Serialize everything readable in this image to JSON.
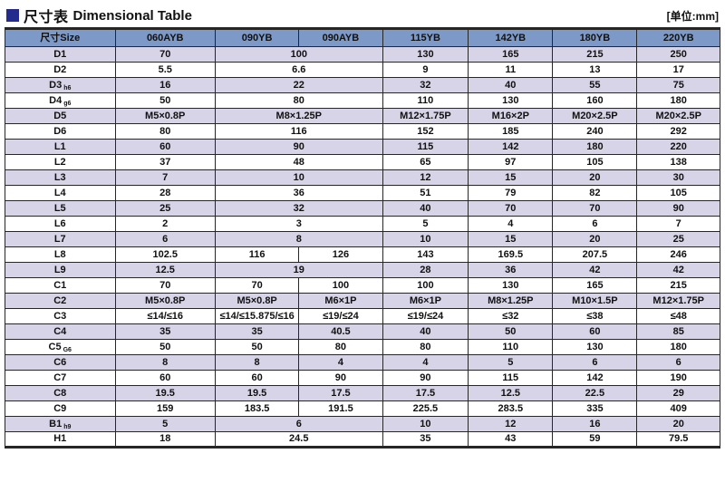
{
  "header": {
    "title_zh": "尺寸表",
    "title_en": "Dimensional Table",
    "unit": "[单位:mm]"
  },
  "colors": {
    "header_bg": "#7d99c8",
    "row_alt_bg": "#d8d4e8",
    "border": "#262626",
    "title_square": "#232c8c"
  },
  "table": {
    "columns": [
      "尺寸Size",
      "060AYB",
      "090YB",
      "090AYB",
      "115YB",
      "142YB",
      "180YB",
      "220YB"
    ],
    "col_widths_pct": [
      15.4,
      14.0,
      11.7,
      11.7,
      12.0,
      11.8,
      11.8,
      11.6
    ],
    "rows": [
      {
        "label": "D1",
        "sub": "",
        "cells": [
          {
            "v": "70"
          },
          {
            "v": "100",
            "s": 2
          },
          {
            "v": "130"
          },
          {
            "v": "165"
          },
          {
            "v": "215"
          },
          {
            "v": "250"
          }
        ]
      },
      {
        "label": "D2",
        "sub": "",
        "cells": [
          {
            "v": "5.5"
          },
          {
            "v": "6.6",
            "s": 2
          },
          {
            "v": "9"
          },
          {
            "v": "11"
          },
          {
            "v": "13"
          },
          {
            "v": "17"
          }
        ]
      },
      {
        "label": "D3",
        "sub": "h6",
        "cells": [
          {
            "v": "16"
          },
          {
            "v": "22",
            "s": 2
          },
          {
            "v": "32"
          },
          {
            "v": "40"
          },
          {
            "v": "55"
          },
          {
            "v": "75"
          }
        ]
      },
      {
        "label": "D4",
        "sub": "g6",
        "cells": [
          {
            "v": "50"
          },
          {
            "v": "80",
            "s": 2
          },
          {
            "v": "110"
          },
          {
            "v": "130"
          },
          {
            "v": "160"
          },
          {
            "v": "180"
          }
        ]
      },
      {
        "label": "D5",
        "sub": "",
        "cells": [
          {
            "v": "M5×0.8P"
          },
          {
            "v": "M8×1.25P",
            "s": 2
          },
          {
            "v": "M12×1.75P"
          },
          {
            "v": "M16×2P"
          },
          {
            "v": "M20×2.5P"
          },
          {
            "v": "M20×2.5P"
          }
        ]
      },
      {
        "label": "D6",
        "sub": "",
        "cells": [
          {
            "v": "80"
          },
          {
            "v": "116",
            "s": 2
          },
          {
            "v": "152"
          },
          {
            "v": "185"
          },
          {
            "v": "240"
          },
          {
            "v": "292"
          }
        ]
      },
      {
        "label": "L1",
        "sub": "",
        "cells": [
          {
            "v": "60"
          },
          {
            "v": "90",
            "s": 2
          },
          {
            "v": "115"
          },
          {
            "v": "142"
          },
          {
            "v": "180"
          },
          {
            "v": "220"
          }
        ]
      },
      {
        "label": "L2",
        "sub": "",
        "cells": [
          {
            "v": "37"
          },
          {
            "v": "48",
            "s": 2
          },
          {
            "v": "65"
          },
          {
            "v": "97"
          },
          {
            "v": "105"
          },
          {
            "v": "138"
          }
        ]
      },
      {
        "label": "L3",
        "sub": "",
        "cells": [
          {
            "v": "7"
          },
          {
            "v": "10",
            "s": 2
          },
          {
            "v": "12"
          },
          {
            "v": "15"
          },
          {
            "v": "20"
          },
          {
            "v": "30"
          }
        ]
      },
      {
        "label": "L4",
        "sub": "",
        "cells": [
          {
            "v": "28"
          },
          {
            "v": "36",
            "s": 2
          },
          {
            "v": "51"
          },
          {
            "v": "79"
          },
          {
            "v": "82"
          },
          {
            "v": "105"
          }
        ]
      },
      {
        "label": "L5",
        "sub": "",
        "cells": [
          {
            "v": "25"
          },
          {
            "v": "32",
            "s": 2
          },
          {
            "v": "40"
          },
          {
            "v": "70"
          },
          {
            "v": "70"
          },
          {
            "v": "90"
          }
        ]
      },
      {
        "label": "L6",
        "sub": "",
        "cells": [
          {
            "v": "2"
          },
          {
            "v": "3",
            "s": 2
          },
          {
            "v": "5"
          },
          {
            "v": "4"
          },
          {
            "v": "6"
          },
          {
            "v": "7"
          }
        ]
      },
      {
        "label": "L7",
        "sub": "",
        "cells": [
          {
            "v": "6"
          },
          {
            "v": "8",
            "s": 2
          },
          {
            "v": "10"
          },
          {
            "v": "15"
          },
          {
            "v": "20"
          },
          {
            "v": "25"
          }
        ]
      },
      {
        "label": "L8",
        "sub": "",
        "cells": [
          {
            "v": "102.5"
          },
          {
            "v": "116"
          },
          {
            "v": "126"
          },
          {
            "v": "143"
          },
          {
            "v": "169.5"
          },
          {
            "v": "207.5"
          },
          {
            "v": "246"
          }
        ]
      },
      {
        "label": "L9",
        "sub": "",
        "cells": [
          {
            "v": "12.5"
          },
          {
            "v": "19",
            "s": 2
          },
          {
            "v": "28"
          },
          {
            "v": "36"
          },
          {
            "v": "42"
          },
          {
            "v": "42"
          }
        ]
      },
      {
        "label": "C1",
        "sub": "",
        "cells": [
          {
            "v": "70"
          },
          {
            "v": "70"
          },
          {
            "v": "100"
          },
          {
            "v": "100"
          },
          {
            "v": "130"
          },
          {
            "v": "165"
          },
          {
            "v": "215"
          }
        ]
      },
      {
        "label": "C2",
        "sub": "",
        "cells": [
          {
            "v": "M5×0.8P"
          },
          {
            "v": "M5×0.8P"
          },
          {
            "v": "M6×1P"
          },
          {
            "v": "M6×1P"
          },
          {
            "v": "M8×1.25P"
          },
          {
            "v": "M10×1.5P"
          },
          {
            "v": "M12×1.75P"
          }
        ]
      },
      {
        "label": "C3",
        "sub": "",
        "cells": [
          {
            "v": "≤14/≤16"
          },
          {
            "v": "≤14/≤15.875/≤16"
          },
          {
            "v": "≤19/≤24"
          },
          {
            "v": "≤19/≤24"
          },
          {
            "v": "≤32"
          },
          {
            "v": "≤38"
          },
          {
            "v": "≤48"
          }
        ]
      },
      {
        "label": "C4",
        "sub": "",
        "cells": [
          {
            "v": "35"
          },
          {
            "v": "35"
          },
          {
            "v": "40.5"
          },
          {
            "v": "40"
          },
          {
            "v": "50"
          },
          {
            "v": "60"
          },
          {
            "v": "85"
          }
        ]
      },
      {
        "label": "C5",
        "sub": "G6",
        "cells": [
          {
            "v": "50"
          },
          {
            "v": "50"
          },
          {
            "v": "80"
          },
          {
            "v": "80"
          },
          {
            "v": "110"
          },
          {
            "v": "130"
          },
          {
            "v": "180"
          }
        ]
      },
      {
        "label": "C6",
        "sub": "",
        "cells": [
          {
            "v": "8"
          },
          {
            "v": "8"
          },
          {
            "v": "4"
          },
          {
            "v": "4"
          },
          {
            "v": "5"
          },
          {
            "v": "6"
          },
          {
            "v": "6"
          }
        ]
      },
      {
        "label": "C7",
        "sub": "",
        "cells": [
          {
            "v": "60"
          },
          {
            "v": "60"
          },
          {
            "v": "90"
          },
          {
            "v": "90"
          },
          {
            "v": "115"
          },
          {
            "v": "142"
          },
          {
            "v": "190"
          }
        ]
      },
      {
        "label": "C8",
        "sub": "",
        "cells": [
          {
            "v": "19.5"
          },
          {
            "v": "19.5"
          },
          {
            "v": "17.5"
          },
          {
            "v": "17.5"
          },
          {
            "v": "12.5"
          },
          {
            "v": "22.5"
          },
          {
            "v": "29"
          }
        ]
      },
      {
        "label": "C9",
        "sub": "",
        "cells": [
          {
            "v": "159"
          },
          {
            "v": "183.5"
          },
          {
            "v": "191.5"
          },
          {
            "v": "225.5"
          },
          {
            "v": "283.5"
          },
          {
            "v": "335"
          },
          {
            "v": "409"
          }
        ]
      },
      {
        "label": "B1",
        "sub": "h9",
        "cells": [
          {
            "v": "5"
          },
          {
            "v": "6",
            "s": 2
          },
          {
            "v": "10"
          },
          {
            "v": "12"
          },
          {
            "v": "16"
          },
          {
            "v": "20"
          }
        ]
      },
      {
        "label": "H1",
        "sub": "",
        "cells": [
          {
            "v": "18"
          },
          {
            "v": "24.5",
            "s": 2
          },
          {
            "v": "35"
          },
          {
            "v": "43"
          },
          {
            "v": "59"
          },
          {
            "v": "79.5"
          }
        ]
      }
    ]
  }
}
